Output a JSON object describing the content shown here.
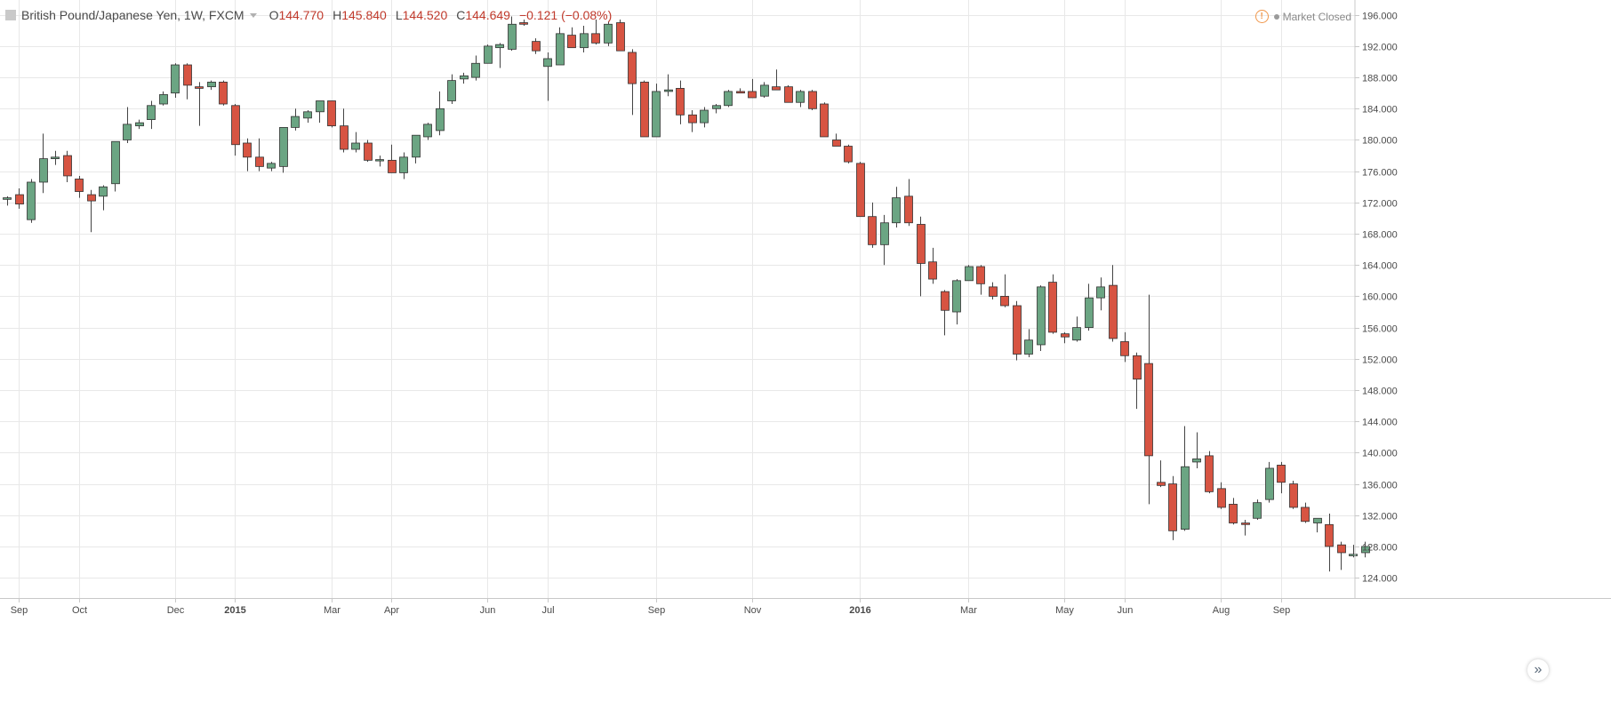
{
  "legend": {
    "symbol": "British Pound/Japanese Yen, 1W, FXCM",
    "open_label": "O",
    "open": "144.770",
    "high_label": "H",
    "high": "145.840",
    "low_label": "L",
    "low": "144.520",
    "close_label": "C",
    "close": "144.649",
    "change": "−0.121 (−0.08%)"
  },
  "status": {
    "icon": "warning-icon",
    "text": "Market Closed"
  },
  "scroll_button": {
    "icon": "double-chevron-right-icon",
    "glyph": "»"
  },
  "colors": {
    "up": "#6ba583",
    "down": "#d75442",
    "wick": "#444444"
  },
  "chart_data": {
    "type": "candlestick",
    "title": "",
    "xlabel": "",
    "ylabel": "",
    "ylim": [
      121.4,
      197.9
    ],
    "yticks": [
      "124.000",
      "128.000",
      "132.000",
      "136.000",
      "140.000",
      "144.000",
      "148.000",
      "152.000",
      "156.000",
      "160.000",
      "164.000",
      "168.000",
      "172.000",
      "176.000",
      "180.000",
      "184.000",
      "188.000",
      "192.000",
      "196.000"
    ],
    "grid": true,
    "x_labels": [
      {
        "label": "Sep",
        "index": 1,
        "bold": false
      },
      {
        "label": "Oct",
        "index": 6,
        "bold": false
      },
      {
        "label": "Dec",
        "index": 14,
        "bold": false
      },
      {
        "label": "2015",
        "index": 19,
        "bold": true
      },
      {
        "label": "Mar",
        "index": 27,
        "bold": false
      },
      {
        "label": "Apr",
        "index": 32,
        "bold": false
      },
      {
        "label": "Jun",
        "index": 40,
        "bold": false
      },
      {
        "label": "Jul",
        "index": 45,
        "bold": false
      },
      {
        "label": "Sep",
        "index": 54,
        "bold": false
      },
      {
        "label": "Nov",
        "index": 62,
        "bold": false
      },
      {
        "label": "2016",
        "index": 71,
        "bold": true
      },
      {
        "label": "Mar",
        "index": 80,
        "bold": false
      },
      {
        "label": "May",
        "index": 88,
        "bold": false
      },
      {
        "label": "Jun",
        "index": 93,
        "bold": false
      },
      {
        "label": "Aug",
        "index": 101,
        "bold": false
      },
      {
        "label": "Sep",
        "index": 106,
        "bold": false
      }
    ],
    "candles": [
      {
        "o": 172.4,
        "h": 172.8,
        "l": 171.6,
        "c": 172.6
      },
      {
        "o": 173.0,
        "h": 173.8,
        "l": 171.2,
        "c": 171.8
      },
      {
        "o": 169.8,
        "h": 175.0,
        "l": 169.4,
        "c": 174.6
      },
      {
        "o": 174.6,
        "h": 180.8,
        "l": 173.2,
        "c": 177.6
      },
      {
        "o": 177.6,
        "h": 178.6,
        "l": 176.8,
        "c": 177.8
      },
      {
        "o": 178.0,
        "h": 178.6,
        "l": 174.6,
        "c": 175.4
      },
      {
        "o": 175.0,
        "h": 175.4,
        "l": 172.6,
        "c": 173.4
      },
      {
        "o": 173.0,
        "h": 173.6,
        "l": 168.2,
        "c": 172.2
      },
      {
        "o": 172.8,
        "h": 174.2,
        "l": 171.0,
        "c": 174.0
      },
      {
        "o": 174.4,
        "h": 179.8,
        "l": 173.4,
        "c": 179.8
      },
      {
        "o": 180.0,
        "h": 184.2,
        "l": 179.6,
        "c": 182.0
      },
      {
        "o": 181.8,
        "h": 182.6,
        "l": 181.4,
        "c": 182.2
      },
      {
        "o": 182.6,
        "h": 185.0,
        "l": 181.4,
        "c": 184.4
      },
      {
        "o": 184.6,
        "h": 186.2,
        "l": 184.4,
        "c": 185.8
      },
      {
        "o": 186.0,
        "h": 189.8,
        "l": 185.4,
        "c": 189.6
      },
      {
        "o": 189.6,
        "h": 189.8,
        "l": 185.2,
        "c": 187.0
      },
      {
        "o": 186.8,
        "h": 187.4,
        "l": 181.8,
        "c": 186.6
      },
      {
        "o": 186.8,
        "h": 187.6,
        "l": 186.4,
        "c": 187.4
      },
      {
        "o": 187.4,
        "h": 187.6,
        "l": 184.4,
        "c": 184.6
      },
      {
        "o": 184.4,
        "h": 184.6,
        "l": 178.0,
        "c": 179.4
      },
      {
        "o": 179.6,
        "h": 180.2,
        "l": 176.0,
        "c": 177.8
      },
      {
        "o": 177.8,
        "h": 180.2,
        "l": 176.0,
        "c": 176.6
      },
      {
        "o": 176.4,
        "h": 177.2,
        "l": 176.0,
        "c": 177.0
      },
      {
        "o": 176.6,
        "h": 181.6,
        "l": 175.8,
        "c": 181.6
      },
      {
        "o": 181.6,
        "h": 184.0,
        "l": 181.2,
        "c": 183.0
      },
      {
        "o": 182.8,
        "h": 183.8,
        "l": 182.2,
        "c": 183.6
      },
      {
        "o": 183.6,
        "h": 185.0,
        "l": 182.2,
        "c": 185.0
      },
      {
        "o": 185.0,
        "h": 185.0,
        "l": 181.6,
        "c": 181.8
      },
      {
        "o": 181.8,
        "h": 184.0,
        "l": 178.4,
        "c": 178.8
      },
      {
        "o": 178.8,
        "h": 181.0,
        "l": 178.4,
        "c": 179.6
      },
      {
        "o": 179.6,
        "h": 180.0,
        "l": 177.2,
        "c": 177.4
      },
      {
        "o": 177.4,
        "h": 178.0,
        "l": 176.6,
        "c": 177.4
      },
      {
        "o": 177.4,
        "h": 179.4,
        "l": 175.8,
        "c": 175.8
      },
      {
        "o": 175.8,
        "h": 178.4,
        "l": 175.0,
        "c": 177.8
      },
      {
        "o": 177.8,
        "h": 180.6,
        "l": 177.0,
        "c": 180.6
      },
      {
        "o": 180.4,
        "h": 182.2,
        "l": 180.0,
        "c": 182.0
      },
      {
        "o": 181.2,
        "h": 186.2,
        "l": 180.6,
        "c": 184.0
      },
      {
        "o": 185.0,
        "h": 188.4,
        "l": 184.6,
        "c": 187.6
      },
      {
        "o": 187.8,
        "h": 188.6,
        "l": 187.2,
        "c": 188.2
      },
      {
        "o": 188.0,
        "h": 190.8,
        "l": 187.6,
        "c": 189.8
      },
      {
        "o": 189.8,
        "h": 192.2,
        "l": 189.8,
        "c": 192.0
      },
      {
        "o": 191.8,
        "h": 192.4,
        "l": 189.2,
        "c": 192.2
      },
      {
        "o": 191.6,
        "h": 195.8,
        "l": 191.4,
        "c": 194.8
      },
      {
        "o": 195.0,
        "h": 195.4,
        "l": 194.6,
        "c": 194.8
      },
      {
        "o": 192.6,
        "h": 193.0,
        "l": 191.0,
        "c": 191.4
      },
      {
        "o": 189.4,
        "h": 191.2,
        "l": 185.0,
        "c": 190.4
      },
      {
        "o": 189.6,
        "h": 194.4,
        "l": 189.6,
        "c": 193.6
      },
      {
        "o": 193.4,
        "h": 194.4,
        "l": 191.8,
        "c": 191.8
      },
      {
        "o": 191.8,
        "h": 194.6,
        "l": 191.2,
        "c": 193.6
      },
      {
        "o": 193.6,
        "h": 195.4,
        "l": 192.2,
        "c": 192.4
      },
      {
        "o": 192.4,
        "h": 195.2,
        "l": 192.0,
        "c": 194.8
      },
      {
        "o": 195.0,
        "h": 195.4,
        "l": 191.4,
        "c": 191.4
      },
      {
        "o": 191.2,
        "h": 191.6,
        "l": 183.2,
        "c": 187.2
      },
      {
        "o": 187.4,
        "h": 187.6,
        "l": 180.4,
        "c": 180.4
      },
      {
        "o": 180.4,
        "h": 187.2,
        "l": 180.4,
        "c": 186.2
      },
      {
        "o": 186.2,
        "h": 188.4,
        "l": 185.6,
        "c": 186.4
      },
      {
        "o": 186.6,
        "h": 187.6,
        "l": 182.0,
        "c": 183.2
      },
      {
        "o": 183.2,
        "h": 183.8,
        "l": 181.0,
        "c": 182.2
      },
      {
        "o": 182.2,
        "h": 184.2,
        "l": 181.6,
        "c": 183.8
      },
      {
        "o": 184.0,
        "h": 184.6,
        "l": 183.4,
        "c": 184.4
      },
      {
        "o": 184.4,
        "h": 186.4,
        "l": 184.2,
        "c": 186.2
      },
      {
        "o": 186.2,
        "h": 186.6,
        "l": 186.0,
        "c": 186.0
      },
      {
        "o": 186.2,
        "h": 187.8,
        "l": 185.4,
        "c": 185.4
      },
      {
        "o": 185.6,
        "h": 187.4,
        "l": 185.4,
        "c": 187.0
      },
      {
        "o": 186.8,
        "h": 189.0,
        "l": 186.4,
        "c": 186.4
      },
      {
        "o": 186.8,
        "h": 187.0,
        "l": 184.8,
        "c": 184.8
      },
      {
        "o": 184.8,
        "h": 186.4,
        "l": 184.2,
        "c": 186.2
      },
      {
        "o": 186.2,
        "h": 186.4,
        "l": 183.8,
        "c": 184.0
      },
      {
        "o": 184.6,
        "h": 184.8,
        "l": 180.4,
        "c": 180.4
      },
      {
        "o": 180.0,
        "h": 180.8,
        "l": 179.2,
        "c": 179.2
      },
      {
        "o": 179.2,
        "h": 179.4,
        "l": 177.0,
        "c": 177.2
      },
      {
        "o": 177.0,
        "h": 177.2,
        "l": 170.2,
        "c": 170.2
      },
      {
        "o": 170.2,
        "h": 172.0,
        "l": 166.2,
        "c": 166.6
      },
      {
        "o": 166.6,
        "h": 170.4,
        "l": 164.0,
        "c": 169.4
      },
      {
        "o": 169.4,
        "h": 174.0,
        "l": 168.8,
        "c": 172.6
      },
      {
        "o": 172.8,
        "h": 175.0,
        "l": 169.0,
        "c": 169.4
      },
      {
        "o": 169.2,
        "h": 170.2,
        "l": 160.0,
        "c": 164.2
      },
      {
        "o": 164.4,
        "h": 166.2,
        "l": 161.6,
        "c": 162.2
      },
      {
        "o": 160.6,
        "h": 160.8,
        "l": 155.0,
        "c": 158.2
      },
      {
        "o": 158.0,
        "h": 162.2,
        "l": 156.4,
        "c": 162.0
      },
      {
        "o": 162.0,
        "h": 164.0,
        "l": 162.0,
        "c": 163.8
      },
      {
        "o": 163.8,
        "h": 164.0,
        "l": 160.2,
        "c": 161.6
      },
      {
        "o": 161.2,
        "h": 161.8,
        "l": 159.6,
        "c": 160.0
      },
      {
        "o": 160.0,
        "h": 162.8,
        "l": 158.6,
        "c": 158.8
      },
      {
        "o": 158.8,
        "h": 159.4,
        "l": 151.8,
        "c": 152.6
      },
      {
        "o": 152.6,
        "h": 155.8,
        "l": 152.2,
        "c": 154.4
      },
      {
        "o": 153.8,
        "h": 161.4,
        "l": 153.0,
        "c": 161.2
      },
      {
        "o": 161.8,
        "h": 162.8,
        "l": 155.2,
        "c": 155.4
      },
      {
        "o": 155.2,
        "h": 155.4,
        "l": 154.0,
        "c": 154.8
      },
      {
        "o": 154.4,
        "h": 157.4,
        "l": 154.2,
        "c": 156.0
      },
      {
        "o": 156.0,
        "h": 161.6,
        "l": 155.6,
        "c": 159.8
      },
      {
        "o": 159.8,
        "h": 162.4,
        "l": 158.2,
        "c": 161.2
      },
      {
        "o": 161.4,
        "h": 164.0,
        "l": 154.2,
        "c": 154.6
      },
      {
        "o": 154.2,
        "h": 155.4,
        "l": 151.6,
        "c": 152.4
      },
      {
        "o": 152.4,
        "h": 152.8,
        "l": 145.6,
        "c": 149.4
      },
      {
        "o": 151.4,
        "h": 160.2,
        "l": 133.4,
        "c": 139.6
      },
      {
        "o": 136.2,
        "h": 139.0,
        "l": 135.6,
        "c": 135.8
      },
      {
        "o": 136.0,
        "h": 137.0,
        "l": 128.8,
        "c": 130.0
      },
      {
        "o": 130.2,
        "h": 143.4,
        "l": 130.0,
        "c": 138.2
      },
      {
        "o": 138.8,
        "h": 142.6,
        "l": 138.0,
        "c": 139.2
      },
      {
        "o": 139.6,
        "h": 140.2,
        "l": 134.8,
        "c": 135.0
      },
      {
        "o": 135.4,
        "h": 136.2,
        "l": 132.8,
        "c": 133.0
      },
      {
        "o": 133.4,
        "h": 134.2,
        "l": 130.8,
        "c": 131.0
      },
      {
        "o": 131.0,
        "h": 131.4,
        "l": 129.4,
        "c": 130.8
      },
      {
        "o": 131.6,
        "h": 134.0,
        "l": 131.4,
        "c": 133.6
      },
      {
        "o": 134.0,
        "h": 138.8,
        "l": 133.6,
        "c": 138.0
      },
      {
        "o": 138.4,
        "h": 138.8,
        "l": 134.8,
        "c": 136.2
      },
      {
        "o": 136.0,
        "h": 136.4,
        "l": 132.8,
        "c": 133.0
      },
      {
        "o": 133.0,
        "h": 133.6,
        "l": 131.0,
        "c": 131.2
      },
      {
        "o": 131.0,
        "h": 131.6,
        "l": 129.8,
        "c": 131.6
      },
      {
        "o": 130.8,
        "h": 132.2,
        "l": 124.8,
        "c": 128.0
      },
      {
        "o": 128.2,
        "h": 128.6,
        "l": 125.0,
        "c": 127.2
      },
      {
        "o": 126.8,
        "h": 128.2,
        "l": 126.6,
        "c": 127.0
      },
      {
        "o": 127.2,
        "h": 128.6,
        "l": 126.6,
        "c": 128.0
      }
    ]
  }
}
